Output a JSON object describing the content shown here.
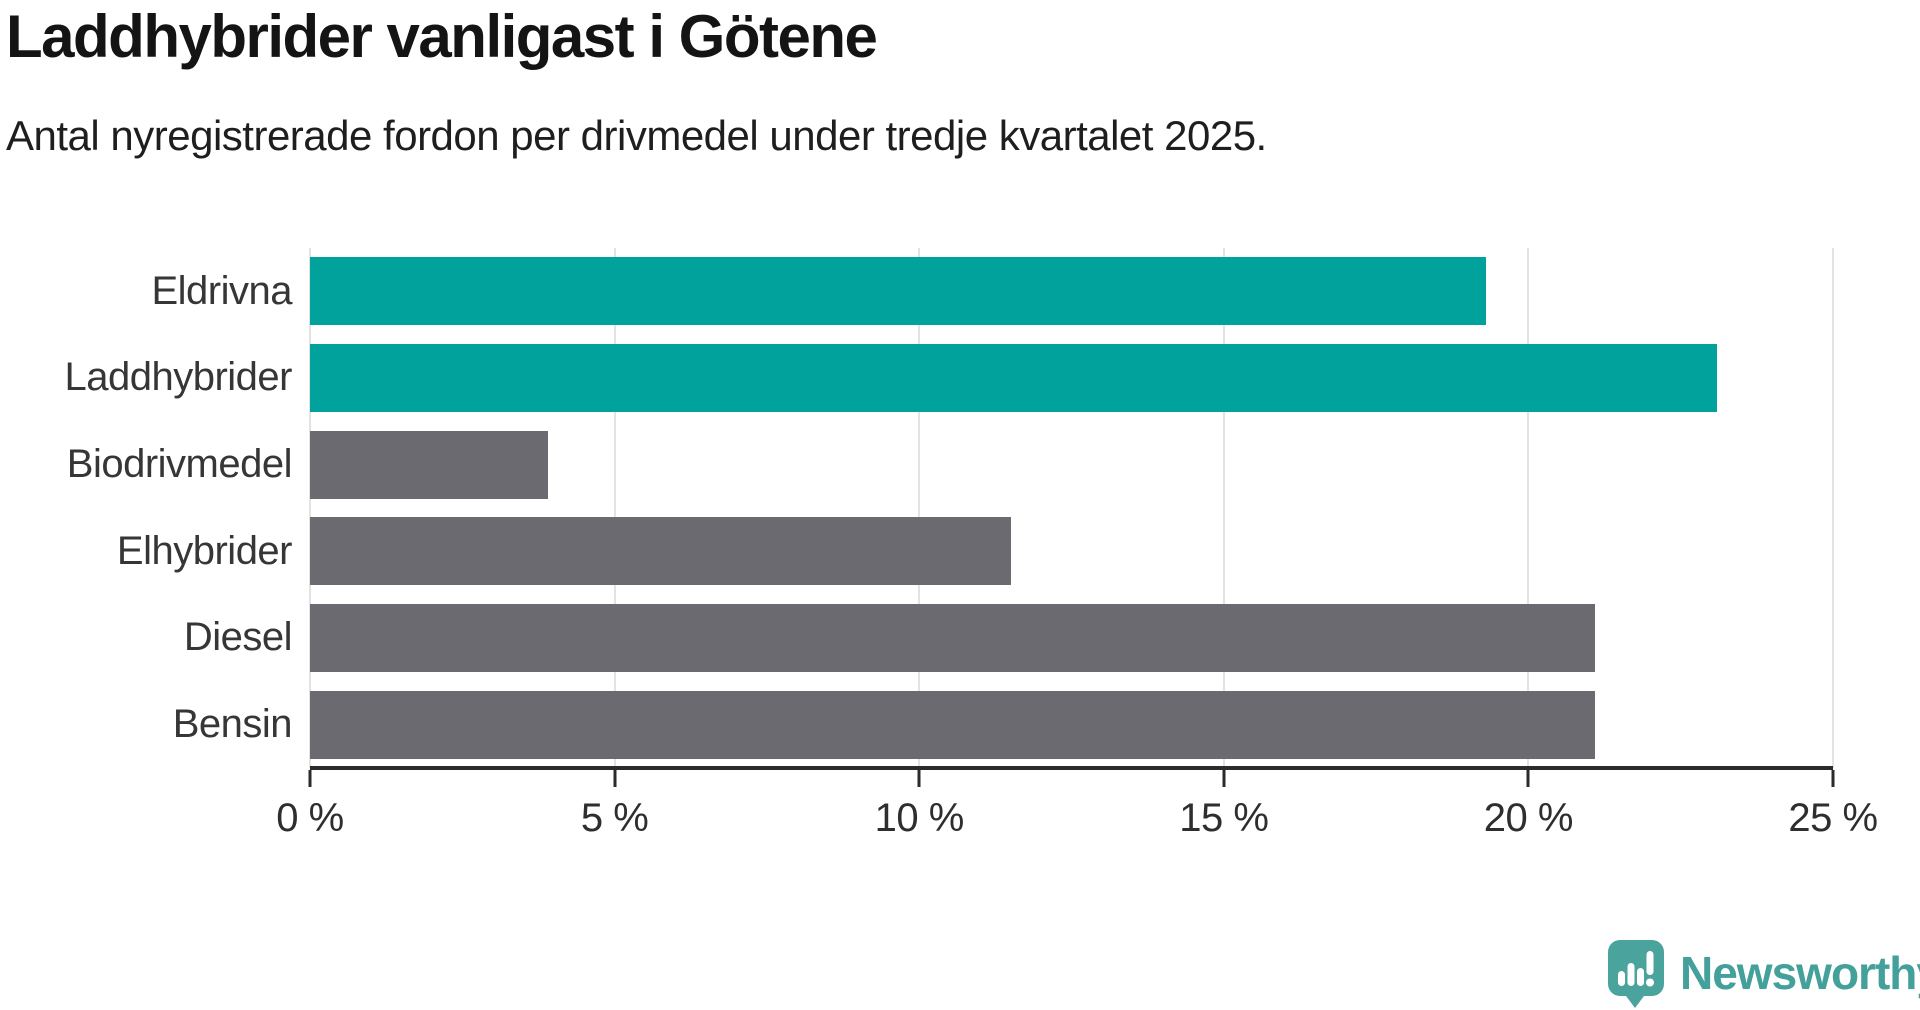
{
  "header": {
    "title": "Laddhybrider vanligast i Götene",
    "subtitle": "Antal nyregistrerade fordon per drivmedel under tredje kvartalet 2025."
  },
  "chart_data": {
    "type": "bar",
    "orientation": "horizontal",
    "title": "Laddhybrider vanligast i Götene",
    "subtitle": "Antal nyregistrerade fordon per drivmedel under tredje kvartalet 2025.",
    "categories": [
      "Eldrivna",
      "Laddhybrider",
      "Biodrivmedel",
      "Elhybrider",
      "Diesel",
      "Bensin"
    ],
    "values": [
      19.3,
      23.1,
      3.9,
      11.5,
      21.1,
      21.1
    ],
    "unit": "%",
    "bar_colors": [
      "#00a29b",
      "#00a29b",
      "#6a6a70",
      "#6a6a70",
      "#6a6a70",
      "#6a6a70"
    ],
    "highlight_color": "#00a29b",
    "default_color": "#6a6a70",
    "xlim": [
      0,
      25
    ],
    "xticks": [
      0,
      5,
      10,
      15,
      20,
      25
    ],
    "xtick_labels": [
      "0 %",
      "5 %",
      "10 %",
      "15 %",
      "20 %",
      "25 %"
    ],
    "grid": "vertical",
    "gridline_color": "#e3e3e3",
    "axis_color": "#2b2b2b",
    "legend": "none"
  },
  "footer": {
    "brand": "Newsworthy",
    "brand_color": "#43a09a"
  }
}
